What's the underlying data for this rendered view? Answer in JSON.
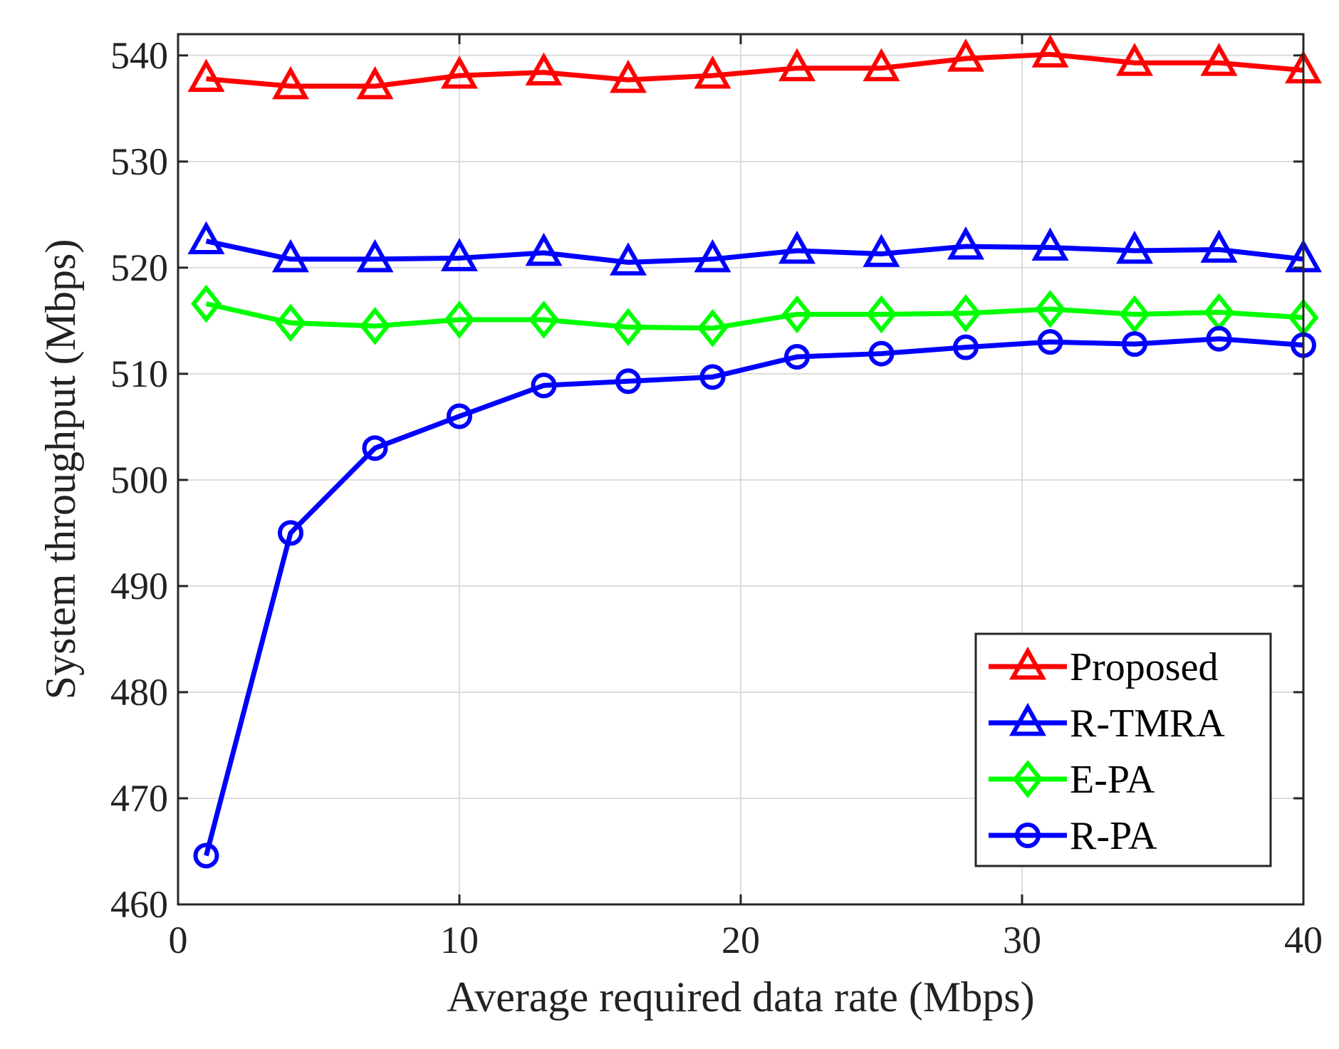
{
  "chart_data": {
    "type": "line",
    "title": "",
    "xlabel": "Average required data rate (Mbps)",
    "ylabel": "System throughput (Mbps)",
    "xlim": [
      0,
      40
    ],
    "ylim": [
      460,
      542
    ],
    "xticks": [
      0,
      10,
      20,
      30,
      40
    ],
    "yticks": [
      460,
      470,
      480,
      490,
      500,
      510,
      520,
      530,
      540
    ],
    "grid": true,
    "legend_position": "bottom-right",
    "x": [
      1,
      4,
      7,
      10,
      13,
      16,
      19,
      22,
      25,
      28,
      31,
      34,
      37,
      40
    ],
    "series": [
      {
        "name": "Proposed",
        "color": "#ff0000",
        "marker": "triangle",
        "values": [
          537.8,
          537.1,
          537.1,
          538.1,
          538.4,
          537.7,
          538.1,
          538.8,
          538.8,
          539.7,
          540.1,
          539.3,
          539.3,
          538.6
        ]
      },
      {
        "name": "R-TMRA",
        "color": "#0000ff",
        "marker": "triangle",
        "values": [
          522.5,
          520.8,
          520.8,
          520.9,
          521.4,
          520.5,
          520.8,
          521.6,
          521.3,
          522.0,
          521.9,
          521.6,
          521.7,
          520.8
        ]
      },
      {
        "name": "E-PA",
        "color": "#00ff00",
        "marker": "diamond",
        "values": [
          516.6,
          514.8,
          514.5,
          515.1,
          515.1,
          514.4,
          514.3,
          515.6,
          515.6,
          515.7,
          516.1,
          515.6,
          515.8,
          515.3
        ]
      },
      {
        "name": "R-PA",
        "color": "#0000ff",
        "marker": "circle",
        "values": [
          464.6,
          495.0,
          503.0,
          506.0,
          508.9,
          509.3,
          509.7,
          511.6,
          511.9,
          512.5,
          513.0,
          512.8,
          513.3,
          512.7
        ]
      }
    ]
  }
}
